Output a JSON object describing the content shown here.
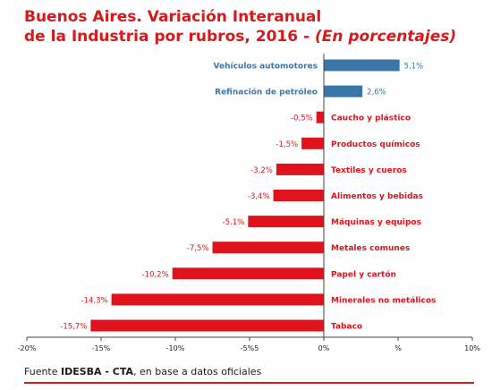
{
  "title": {
    "line1": "Buenos Aires. Variación Interanual",
    "line2": "de la Industria por rubros, 2016 - ",
    "line2_italic": "(En porcentajes)"
  },
  "source": {
    "prefix": "Fuente ",
    "org": "IDESBA - CTA",
    "suffix": ", en base a datos oficiales"
  },
  "colors": {
    "positive": "#3a76a7",
    "negative": "#e0121c",
    "title": "#d7191c"
  },
  "chart_data": {
    "type": "bar",
    "orientation": "horizontal",
    "categories": [
      "Vehículos automotores",
      "Refinación de petróleo",
      "Caucho y plástico",
      "Productos químicos",
      "Textiles y cueros",
      "Alimentos y bebidas",
      "Máquinas y equipos",
      "Metales comunes",
      "Papel y cartón",
      "Minerales no metálicos",
      "Tabaco"
    ],
    "values": [
      5.1,
      2.6,
      -0.5,
      -1.5,
      -3.2,
      -3.4,
      -5.1,
      -7.5,
      -10.2,
      -14.3,
      -15.7
    ],
    "value_labels": [
      "5,1%",
      "2,6%",
      "-0,5%",
      "-1,5%",
      "-3,2%",
      "-3,4%",
      "-5.1%",
      "-7,5%",
      "-10,2%",
      "-14,3%",
      "-15,7%"
    ],
    "xlim": [
      -20,
      10
    ],
    "xticks": [
      -20,
      -15,
      -10,
      -5,
      0,
      5,
      10
    ],
    "xtick_labels": [
      "-20%",
      "-15%",
      "-10%",
      "-5%5",
      "0%",
      "%",
      "10%"
    ],
    "grid": false
  }
}
